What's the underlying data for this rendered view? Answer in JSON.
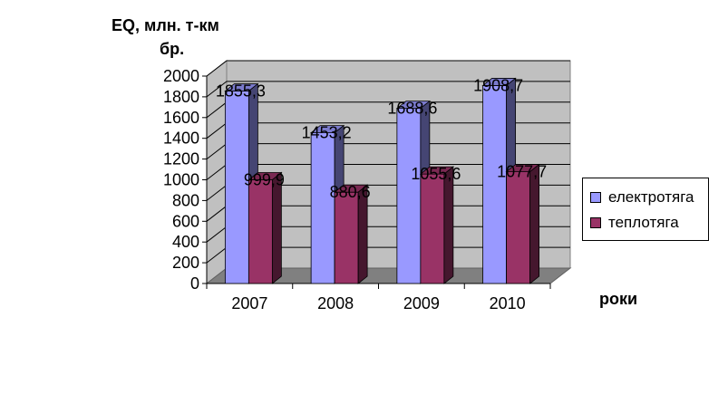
{
  "chart_data": {
    "type": "bar",
    "ylabel_line1": "EQ, млн. т-км",
    "ylabel_line2": "бр.",
    "xlabel": "роки",
    "categories": [
      "2007",
      "2008",
      "2009",
      "2010"
    ],
    "series": [
      {
        "name": "електротяга",
        "values": [
          1855.3,
          1453.2,
          1688.6,
          1908.7
        ],
        "color": "#9999FF",
        "label_text": [
          "1855,3",
          "1453,2",
          "1688,6",
          "1908,7"
        ]
      },
      {
        "name": "теплотяга",
        "values": [
          999.9,
          880.6,
          1055.6,
          1077.7
        ],
        "color": "#993366",
        "label_text": [
          "999,9",
          "880,6",
          "1055,6",
          "1077,7"
        ]
      }
    ],
    "ylim": [
      0,
      2000
    ],
    "yticks": [
      0,
      200,
      400,
      600,
      800,
      1000,
      1200,
      1400,
      1600,
      1800,
      2000
    ],
    "grid": true,
    "legend_position": "right",
    "wall_color": "#C0C0C0",
    "floor_color": "#808080"
  }
}
